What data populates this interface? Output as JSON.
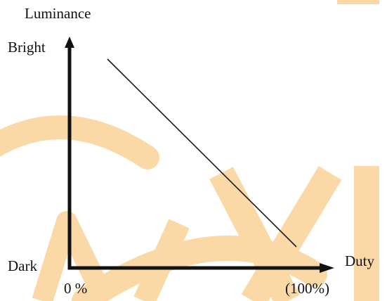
{
  "diagram": {
    "y_axis_title": "Luminance",
    "y_top_label": "Bright",
    "y_bottom_label": "Dark",
    "x_axis_title": "Duty",
    "x_start_label": "0 %",
    "x_end_label": "(100%)"
  },
  "watermark": {
    "color": "#fbd9a6"
  }
}
